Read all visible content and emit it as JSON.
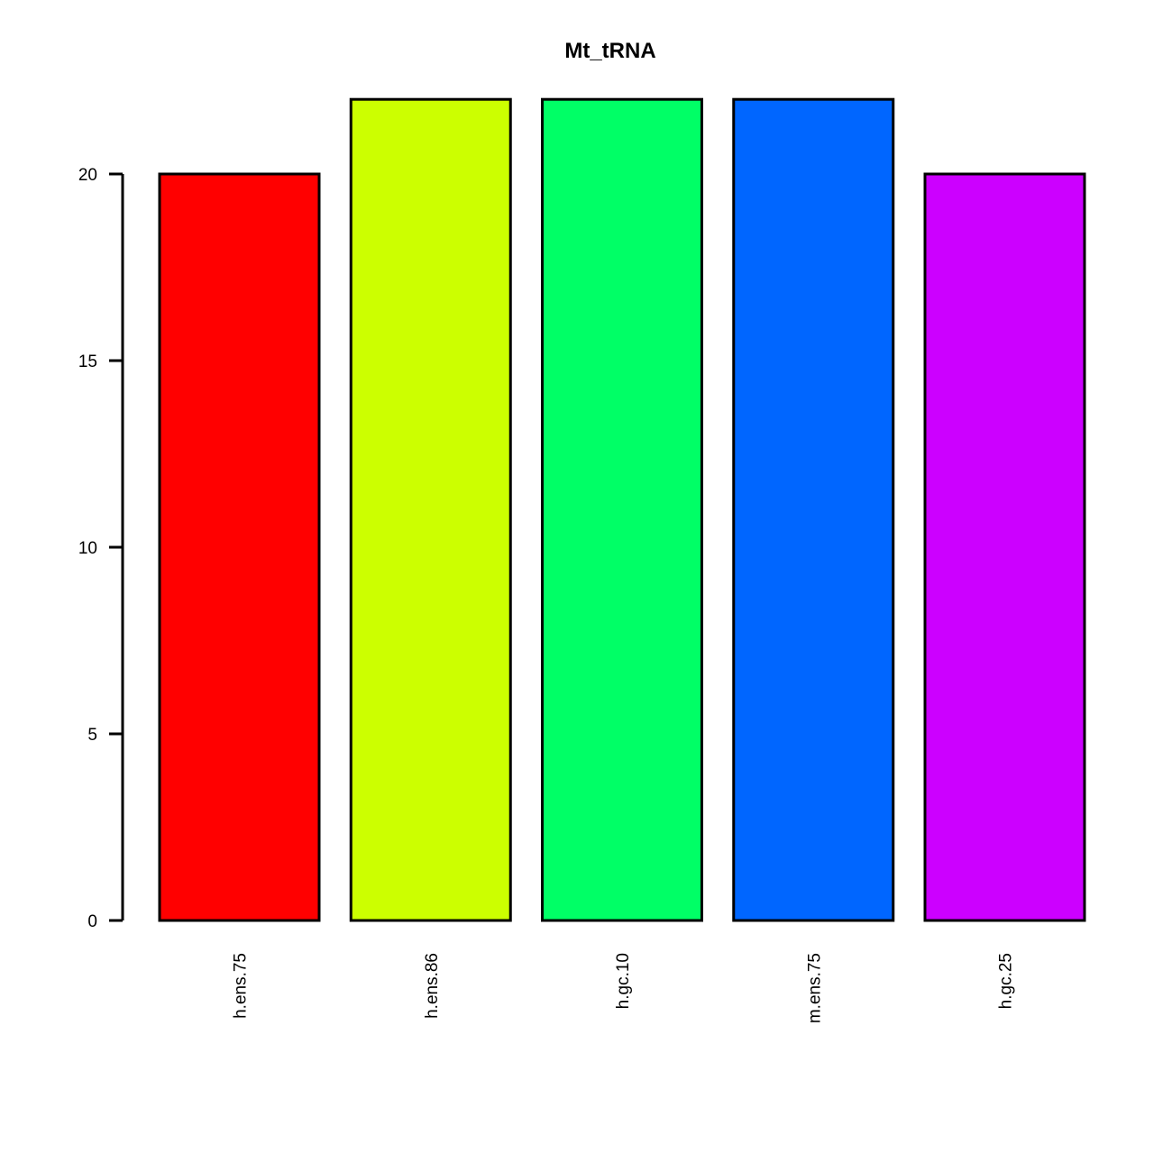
{
  "chart_data": {
    "type": "bar",
    "title": "Mt_tRNA",
    "xlabel": "",
    "ylabel": "",
    "categories": [
      "h.ens.75",
      "h.ens.86",
      "h.gc.10",
      "m.ens.75",
      "h.gc.25"
    ],
    "values": [
      20,
      22,
      22,
      22,
      20
    ],
    "colors": [
      "#ff0000",
      "#ccff00",
      "#00ff66",
      "#0066ff",
      "#cc00ff"
    ],
    "ylim": [
      0,
      22
    ],
    "yticks": [
      0,
      5,
      10,
      15,
      20
    ],
    "grid": false,
    "legend": "none"
  }
}
